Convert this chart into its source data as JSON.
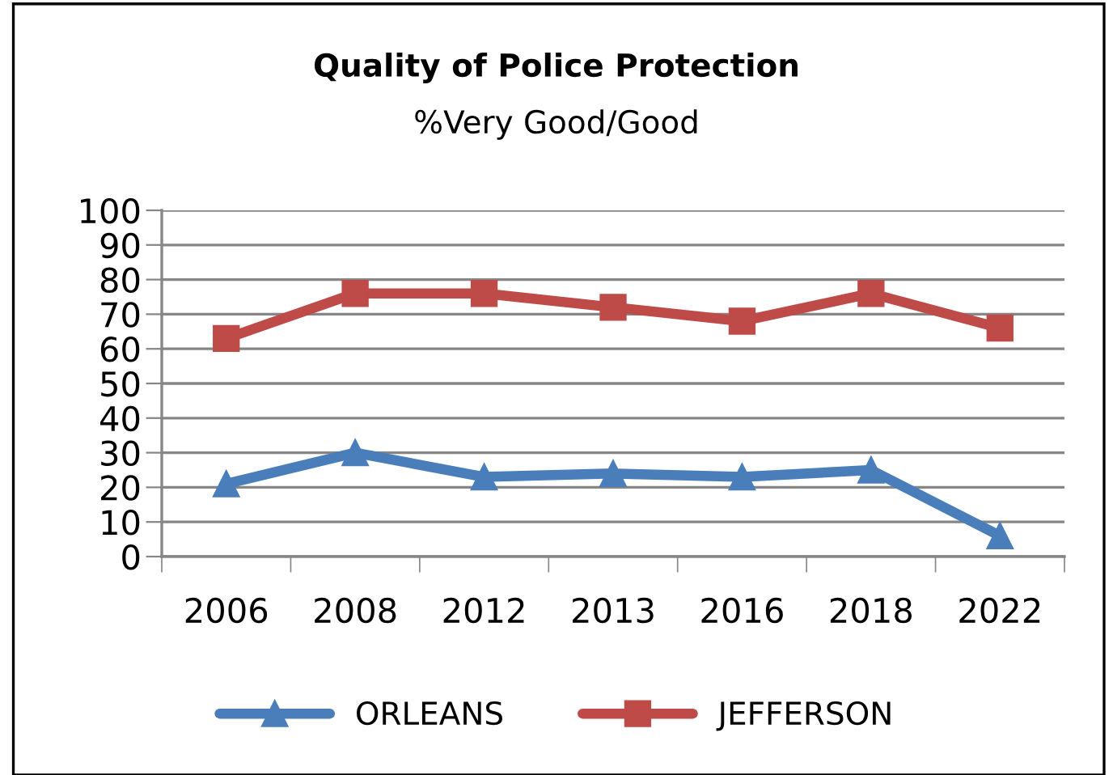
{
  "chart_data": {
    "type": "line",
    "title": "Quality of Police Protection",
    "subtitle": "%Very Good/Good",
    "categories": [
      "2006",
      "2008",
      "2012",
      "2013",
      "2016",
      "2018",
      "2022"
    ],
    "series": [
      {
        "name": "ORLEANS",
        "color": "#4a7ebb",
        "marker": "triangle",
        "values": [
          21,
          30,
          23,
          24,
          23,
          25,
          6
        ]
      },
      {
        "name": "JEFFERSON",
        "color": "#be4b48",
        "marker": "square",
        "values": [
          63,
          76,
          76,
          72,
          68,
          76,
          66
        ]
      }
    ],
    "ylim": [
      0,
      100
    ],
    "yticks": [
      0,
      10,
      20,
      30,
      40,
      50,
      60,
      70,
      80,
      90,
      100
    ],
    "grid": "y",
    "legend": "bottom"
  }
}
